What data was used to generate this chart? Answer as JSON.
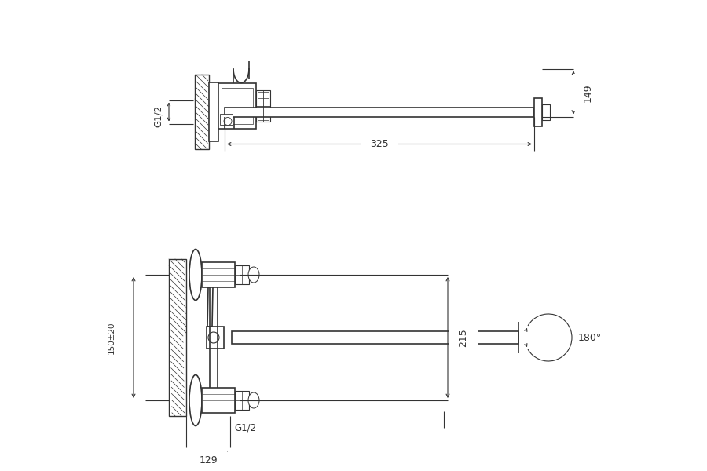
{
  "bg_color": "#ffffff",
  "lc": "#333333",
  "lw_main": 1.2,
  "lw_dim": 0.8,
  "lw_thin": 0.5,
  "annotations": {
    "dim_149": "149",
    "dim_325": "325",
    "dim_g12_top": "G1/2",
    "dim_215": "215",
    "dim_150": "150±20",
    "dim_129": "129",
    "dim_g12_bot": "G1/2",
    "dim_180": "180°"
  }
}
